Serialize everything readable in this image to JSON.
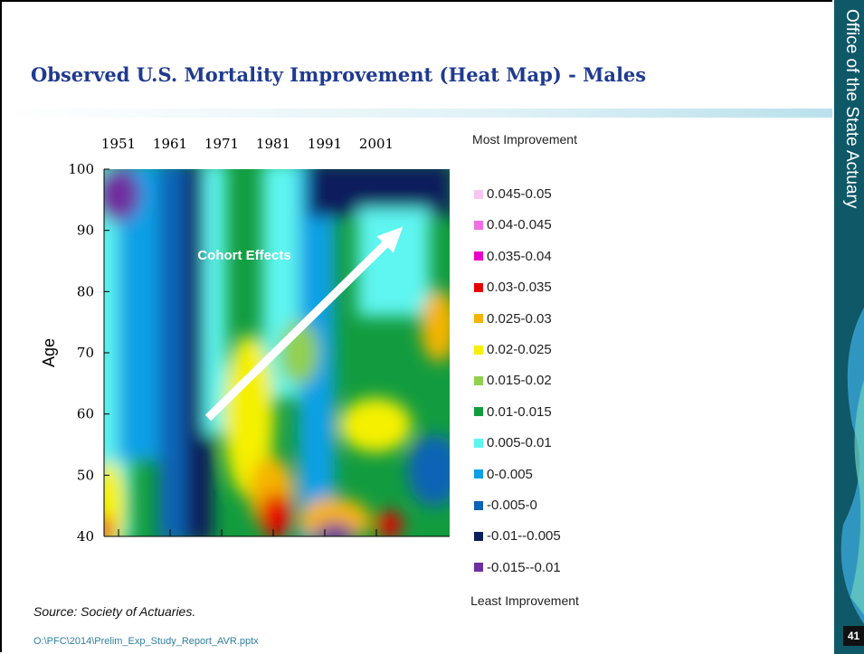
{
  "slide": {
    "title": "Observed U.S. Mortality Improvement (Heat Map) - Males",
    "side_title": "Office of the State Actuary",
    "page_number": "41",
    "source": "Source:  Society of Actuaries.",
    "file_path": "O:\\PFC\\2014\\Prelim_Exp_Study_Report_AVR.pptx"
  },
  "heatmap": {
    "y_label": "Age",
    "x_ticks": [
      "1951",
      "1961",
      "1971",
      "1981",
      "1991",
      "2001"
    ],
    "y_ticks": [
      "100",
      "90",
      "80",
      "70",
      "60",
      "50",
      "40"
    ],
    "annotation": "Cohort Effects",
    "legend_top": "Most Improvement",
    "legend_bottom": "Least Improvement",
    "legend": [
      {
        "label": "0.045-0.05",
        "color": "#f9c6f2"
      },
      {
        "label": "0.04-0.045",
        "color": "#ef6fe0"
      },
      {
        "label": "0.035-0.04",
        "color": "#e800c8"
      },
      {
        "label": "0.03-0.035",
        "color": "#e60000"
      },
      {
        "label": "0.025-0.03",
        "color": "#f5b400"
      },
      {
        "label": "0.02-0.025",
        "color": "#f5f000"
      },
      {
        "label": "0.015-0.02",
        "color": "#92d050"
      },
      {
        "label": "0.01-0.015",
        "color": "#129c3f"
      },
      {
        "label": "0.005-0.01",
        "color": "#5ff5f0"
      },
      {
        "label": "0-0.005",
        "color": "#0aa0e6"
      },
      {
        "label": "-0.005-0",
        "color": "#0b63b5"
      },
      {
        "label": "-0.01--0.005",
        "color": "#0a1f5c"
      },
      {
        "label": "-0.015--0.01",
        "color": "#6f2f9f"
      }
    ]
  }
}
